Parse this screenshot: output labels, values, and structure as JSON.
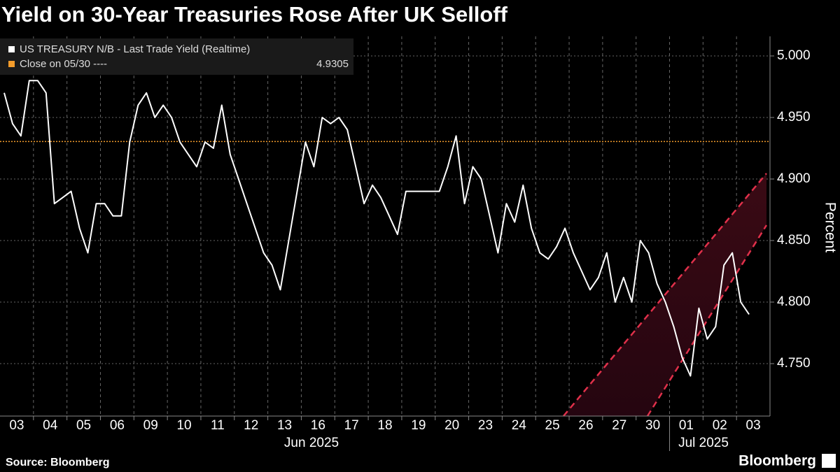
{
  "chart_data": {
    "type": "line",
    "title": "Yield on 30-Year Treasuries Rose After UK Selloff",
    "y_label": "Percent",
    "source": "Source: Bloomberg",
    "brand": "Bloomberg",
    "months": [
      "Jun 2025",
      "Jul 2025"
    ],
    "categories": [
      null,
      null,
      "03",
      null,
      null,
      null,
      "04",
      null,
      null,
      null,
      "05",
      null,
      null,
      null,
      "06",
      null,
      null,
      null,
      "09",
      null,
      null,
      null,
      "10",
      null,
      null,
      null,
      "11",
      null,
      null,
      null,
      "12",
      null,
      null,
      null,
      "13",
      null,
      null,
      null,
      "16",
      null,
      null,
      null,
      "17",
      null,
      null,
      null,
      "18",
      null,
      null,
      null,
      "19",
      null,
      null,
      null,
      "20",
      null,
      null,
      null,
      "23",
      null,
      null,
      null,
      "24",
      null,
      null,
      null,
      "25",
      null,
      null,
      null,
      "26",
      null,
      null,
      null,
      "27",
      null,
      null,
      null,
      "30",
      null,
      null,
      null,
      "01",
      null,
      null,
      null,
      "02",
      null,
      null,
      null,
      "03",
      null
    ],
    "series": [
      {
        "name": "US TREASURY N/B - Last Trade Yield (Realtime)",
        "color": "#ffffff",
        "values": [
          4.97,
          4.945,
          4.935,
          4.98,
          4.98,
          4.97,
          4.88,
          4.885,
          4.89,
          4.86,
          4.84,
          4.88,
          4.88,
          4.87,
          4.87,
          4.93,
          4.96,
          4.97,
          4.95,
          4.96,
          4.95,
          4.93,
          4.92,
          4.91,
          4.93,
          4.925,
          4.96,
          4.92,
          4.9,
          4.88,
          4.86,
          4.84,
          4.83,
          4.81,
          4.85,
          4.89,
          4.93,
          4.91,
          4.95,
          4.945,
          4.95,
          4.94,
          4.91,
          4.88,
          4.895,
          4.885,
          4.87,
          4.855,
          4.89,
          4.89,
          4.89,
          4.89,
          4.89,
          4.91,
          4.935,
          4.88,
          4.91,
          4.9,
          4.87,
          4.84,
          4.88,
          4.865,
          4.895,
          4.86,
          4.84,
          4.835,
          4.845,
          4.86,
          4.84,
          4.825,
          4.81,
          4.82,
          4.84,
          4.8,
          4.82,
          4.8,
          4.85,
          4.84,
          4.815,
          4.8,
          4.78,
          4.755,
          4.74,
          4.795,
          4.77,
          4.78,
          4.83,
          4.84,
          4.8,
          4.79,
          null,
          null
        ]
      }
    ],
    "reference": {
      "name": "Close on 05/30 ----",
      "value": 4.9305,
      "color": "#f39c2b"
    },
    "ylim": [
      4.7074,
      5.0159
    ],
    "yticks": [
      {
        "value": 4.75,
        "label": "4.750"
      },
      {
        "value": 4.8,
        "label": "4.800"
      },
      {
        "value": 4.85,
        "label": "4.850"
      },
      {
        "value": 4.9,
        "label": "4.900"
      },
      {
        "value": 4.95,
        "label": "4.950"
      },
      {
        "value": 5,
        "label": "5.000"
      }
    ],
    "grid": true
  }
}
